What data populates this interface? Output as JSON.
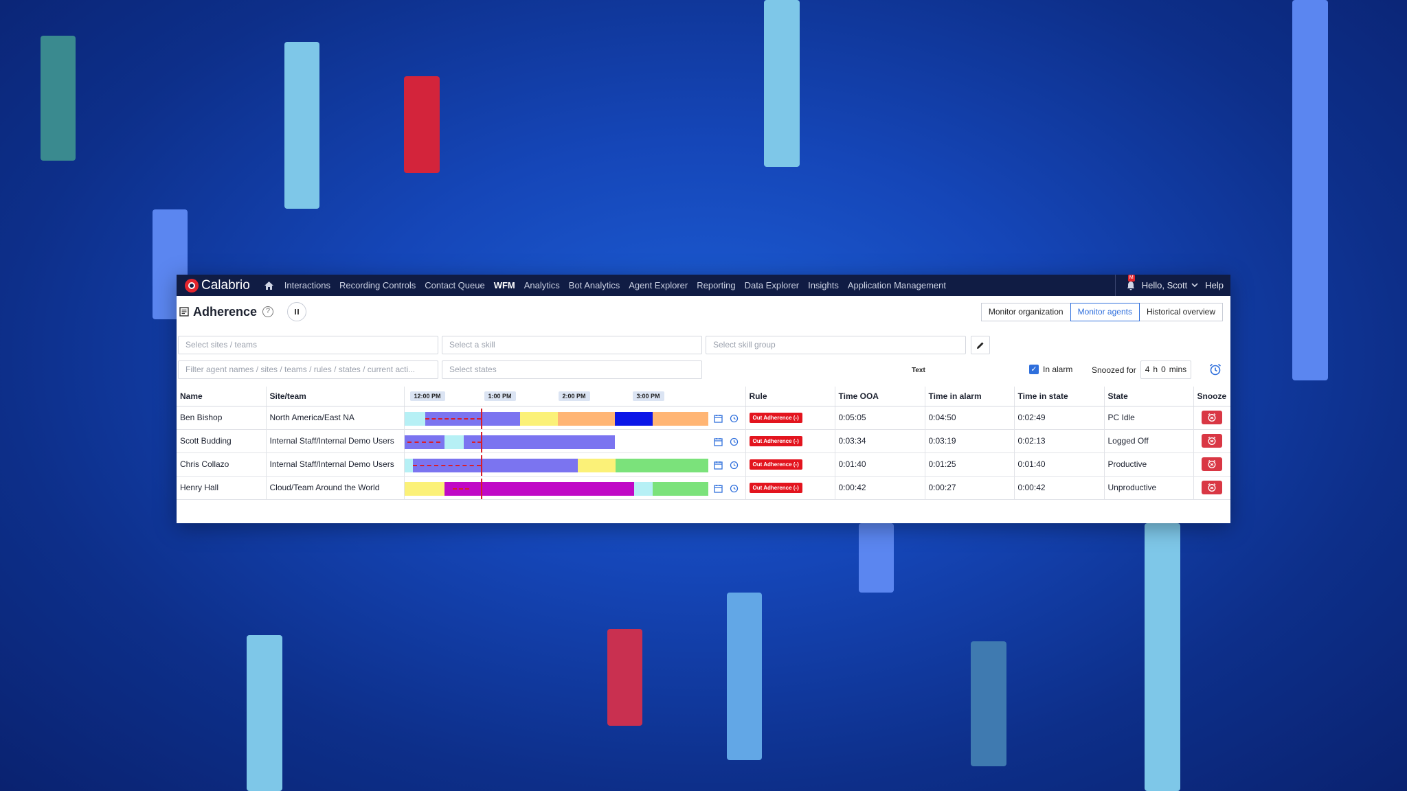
{
  "background": {
    "colors": {
      "teal": "#3a8a8f",
      "light_blue": "#7ec7e8",
      "red": "#d3243b",
      "periwinkle": "#5b86f0",
      "steel": "#3f7ab0"
    }
  },
  "nav": {
    "brand": "Calabrio",
    "items": [
      "Interactions",
      "Recording Controls",
      "Contact Queue",
      "WFM",
      "Analytics",
      "Bot Analytics",
      "Agent Explorer",
      "Reporting",
      "Data Explorer",
      "Insights",
      "Application Management"
    ],
    "active_item": "WFM",
    "notification_count": "M",
    "user_label": "Hello, Scott",
    "help_label": "Help"
  },
  "header": {
    "title": "Adherence",
    "view_tabs": [
      "Monitor organization",
      "Monitor agents",
      "Historical overview"
    ],
    "active_view": "Monitor agents"
  },
  "filters": {
    "sites_placeholder": "Select sites / teams",
    "skill_placeholder": "Select a skill",
    "skill_group_placeholder": "Select skill group",
    "agent_filter_placeholder": "Filter agent names / sites / teams / rules / states / current acti...",
    "states_placeholder": "Select states",
    "text_label": "Text",
    "in_alarm_label": "In alarm",
    "in_alarm_checked": true,
    "snoozed_label": "Snoozed for",
    "snooze_hours": "4",
    "snooze_h_unit": "h",
    "snooze_minutes": "0",
    "snooze_min_unit": "mins"
  },
  "table": {
    "columns": {
      "name": "Name",
      "site": "Site/team",
      "rule": "Rule",
      "time_ooa": "Time OOA",
      "time_alarm": "Time in alarm",
      "time_state": "Time in state",
      "state": "State",
      "snooze": "Snooze"
    },
    "time_ticks": [
      "12:00 PM",
      "1:00 PM",
      "2:00 PM",
      "3:00 PM"
    ],
    "rows": [
      {
        "name": "Ben Bishop",
        "site": "North America/East NA",
        "rule": "Out Adherence (-)",
        "time_ooa": "0:05:05",
        "time_alarm": "0:04:50",
        "time_state": "0:02:49",
        "state": "PC Idle"
      },
      {
        "name": "Scott Budding",
        "site": "Internal Staff/Internal Demo Users",
        "rule": "Out Adherence (-)",
        "time_ooa": "0:03:34",
        "time_alarm": "0:03:19",
        "time_state": "0:02:13",
        "state": "Logged Off"
      },
      {
        "name": "Chris Collazo",
        "site": "Internal Staff/Internal Demo Users",
        "rule": "Out Adherence (-)",
        "time_ooa": "0:01:40",
        "time_alarm": "0:01:25",
        "time_state": "0:01:40",
        "state": "Productive"
      },
      {
        "name": "Henry Hall",
        "site": "Cloud/Team Around the World",
        "rule": "Out Adherence (-)",
        "time_ooa": "0:00:42",
        "time_alarm": "0:00:27",
        "time_state": "0:00:42",
        "state": "Unproductive"
      }
    ]
  },
  "colors": {
    "nav_bg": "#101c44",
    "accent": "#2f6fdc",
    "alarm_red": "#e3141e",
    "snooze_red": "#d93744",
    "seg_lightcyan": "#b6f0f5",
    "seg_periwinkle": "#7b74f0",
    "seg_yellow": "#fbf178",
    "seg_orange": "#ffb574",
    "seg_blue": "#0b16e8",
    "seg_green": "#7be27b",
    "seg_magenta": "#c009c6"
  }
}
